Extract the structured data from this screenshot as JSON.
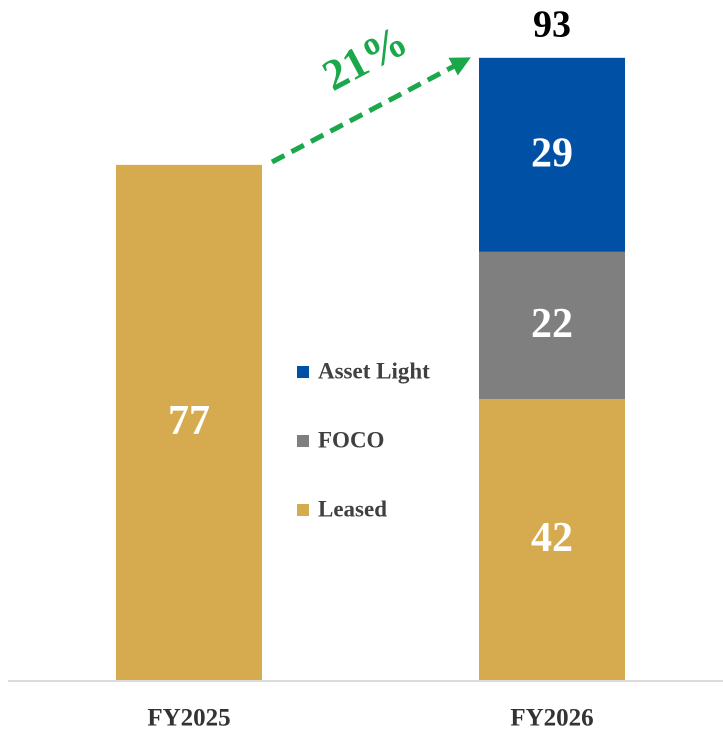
{
  "chart_data": {
    "type": "stacked_bar",
    "categories": [
      "FY2025",
      "FY2026"
    ],
    "series": [
      {
        "name": "Leased",
        "color": "#d6aa4f",
        "values": [
          77,
          42
        ]
      },
      {
        "name": "FOCO",
        "color": "#7f7f7f",
        "values": [
          null,
          22
        ]
      },
      {
        "name": "Asset Light",
        "color": "#0050a5",
        "values": [
          null,
          29
        ]
      }
    ],
    "totals": [
      null,
      93
    ],
    "annotation": "21%",
    "annotation_color": "#1aa84a",
    "ylim": [
      0,
      100
    ],
    "grid": false
  }
}
